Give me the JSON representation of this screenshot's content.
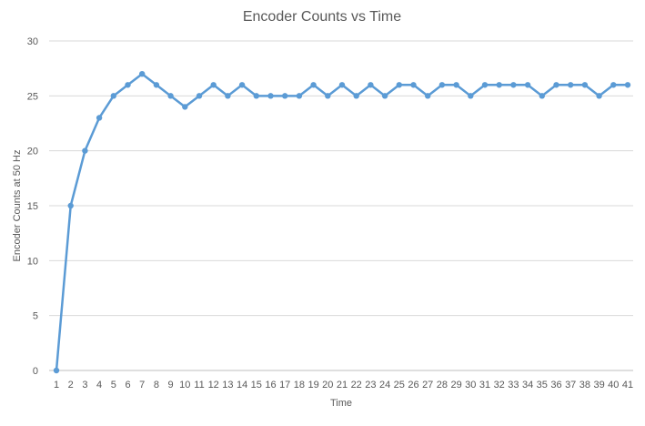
{
  "colors": {
    "series": "#5b9bd5",
    "grid": "#d9d9d9",
    "text": "#595959"
  },
  "chart_data": {
    "type": "line",
    "title": "Encoder Counts  vs Time",
    "xlabel": "Time",
    "ylabel": "Encoder Counts at 50 Hz",
    "ylim": [
      0,
      30
    ],
    "yticks": [
      0,
      5,
      10,
      15,
      20,
      25,
      30
    ],
    "grid": true,
    "legend": "none",
    "categories": [
      "1",
      "2",
      "3",
      "4",
      "5",
      "6",
      "7",
      "8",
      "9",
      "10",
      "11",
      "12",
      "13",
      "14",
      "15",
      "16",
      "17",
      "18",
      "19",
      "20",
      "21",
      "22",
      "23",
      "24",
      "25",
      "26",
      "27",
      "28",
      "29",
      "30",
      "31",
      "32",
      "33",
      "34",
      "35",
      "36",
      "37",
      "38",
      "39",
      "40",
      "41"
    ],
    "series": [
      {
        "values": [
          0,
          15,
          20,
          23,
          25,
          26,
          27,
          26,
          25,
          24,
          25,
          26,
          25,
          26,
          25,
          25,
          25,
          25,
          26,
          25,
          26,
          25,
          26,
          25,
          26,
          26,
          25,
          26,
          26,
          25,
          26,
          26,
          26,
          26,
          25,
          26,
          26,
          26,
          25,
          26,
          26
        ]
      }
    ]
  }
}
